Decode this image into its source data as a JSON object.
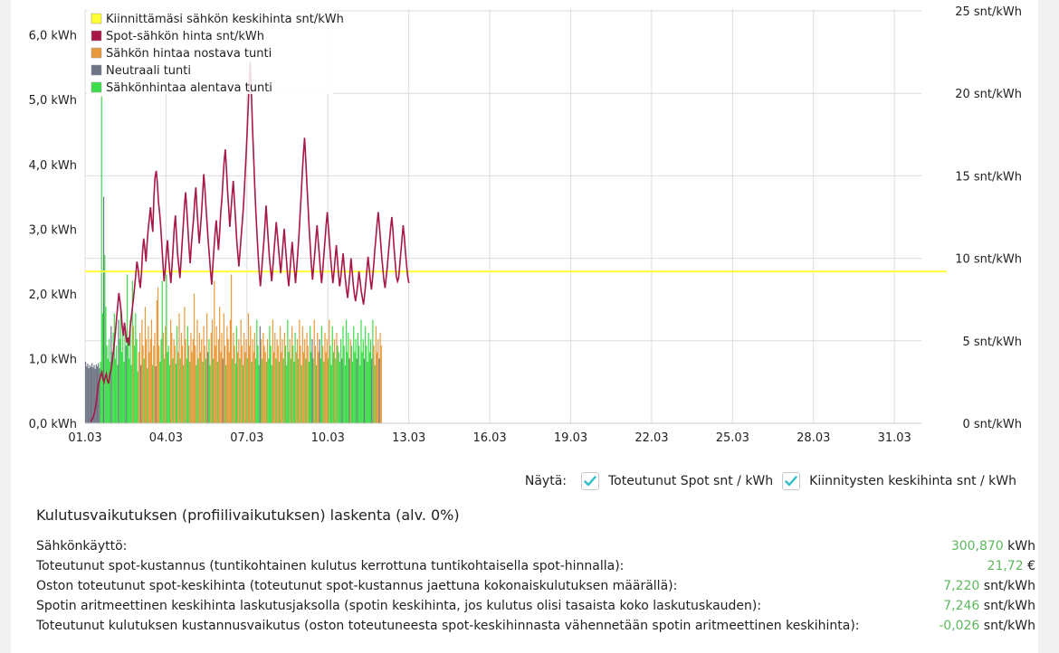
{
  "chart_data": {
    "type": "bar+line",
    "xlabel": "",
    "left_axis": {
      "label": "",
      "ticks": [
        "0,0 kWh",
        "1,0 kWh",
        "2,0 kWh",
        "3,0 kWh",
        "4,0 kWh",
        "5,0 kWh",
        "6,0 kWh"
      ],
      "range": [
        0,
        6.4
      ]
    },
    "right_axis": {
      "label": "",
      "ticks": [
        "0 snt/kWh",
        "5 snt/kWh",
        "10 snt/kWh",
        "15 snt/kWh",
        "20 snt/kWh",
        "25 snt/kWh"
      ],
      "range": [
        0,
        25
      ]
    },
    "x_ticks": [
      "01.03",
      "04.03",
      "07.03",
      "10.03",
      "13.03",
      "16.03",
      "19.03",
      "22.03",
      "25.03",
      "28.03",
      "31.03"
    ],
    "x_range_days": [
      0,
      31
    ],
    "legend": [
      {
        "label": "Kiinnittämäsi sähkön keskihinta snt/kWh",
        "color": "#ffff33"
      },
      {
        "label": "Spot-sähkön hinta snt/kWh",
        "color": "#a8174a"
      },
      {
        "label": "Sähkön hintaa nostava tunti",
        "color": "#e89a3c"
      },
      {
        "label": "Neutraali tunti",
        "color": "#6e7484"
      },
      {
        "label": "Sähkönhintaa alentava tunti",
        "color": "#3ddc4a"
      }
    ],
    "fixed_price_snt": 9.2,
    "consumption_hourly_kwh": [
      0.95,
      0.88,
      0.92,
      0.85,
      0.9,
      0.87,
      0.93,
      0.86,
      0.9,
      0.84,
      0.91,
      0.88,
      0.93,
      0.85,
      0.95,
      5.05,
      1.7,
      3.5,
      2.6,
      1.8,
      1.2,
      1.0,
      1.3,
      0.95,
      1.5,
      1.1,
      1.4,
      1.7,
      1.0,
      1.2,
      0.9,
      1.6,
      1.3,
      1.8,
      1.1,
      1.5,
      0.95,
      1.4,
      1.2,
      2.3,
      1.3,
      1.0,
      1.6,
      0.9,
      2.2,
      1.5,
      1.2,
      1.7,
      1.3,
      0.8,
      1.1,
      1.4,
      0.9,
      1.6,
      1.2,
      1.0,
      1.8,
      1.3,
      0.85,
      1.5,
      1.1,
      1.3,
      1.6,
      0.9,
      1.2,
      1.4,
      0.88,
      1.9,
      2.1,
      1.2,
      0.95,
      1.3,
      2.2,
      1.4,
      1.0,
      1.5,
      2.3,
      1.1,
      1.2,
      0.9,
      1.6,
      1.4,
      1.0,
      1.3,
      1.2,
      0.92,
      1.5,
      1.1,
      1.7,
      1.0,
      1.4,
      1.2,
      0.9,
      1.8,
      1.3,
      1.0,
      1.5,
      1.2,
      0.95,
      1.4,
      1.1,
      1.3,
      2.0,
      1.2,
      0.9,
      1.6,
      1.0,
      1.4,
      1.1,
      1.3,
      0.95,
      1.5,
      1.2,
      1.0,
      1.7,
      1.1,
      1.3,
      0.9,
      1.4,
      1.6,
      1.0,
      2.2,
      1.2,
      1.5,
      0.95,
      1.3,
      1.8,
      1.1,
      1.4,
      1.0,
      1.7,
      1.2,
      0.9,
      1.5,
      1.3,
      1.1,
      1.6,
      2.3,
      1.0,
      1.4,
      1.2,
      0.92,
      1.5,
      1.1,
      1.3,
      1.0,
      1.6,
      1.2,
      0.9,
      1.4,
      1.1,
      1.3,
      1.0,
      1.7,
      1.2,
      1.5,
      0.95,
      1.3,
      1.1,
      1.4,
      1.0,
      1.6,
      1.2,
      0.9,
      1.5,
      1.3,
      1.0,
      1.4,
      1.2,
      1.1,
      0.95,
      1.3,
      1.0,
      1.5,
      1.2,
      0.9,
      1.6,
      1.1,
      1.4,
      1.0,
      1.3,
      1.2,
      0.95,
      1.5,
      1.1,
      1.3,
      1.0,
      1.4,
      1.2,
      0.9,
      1.6,
      1.1,
      1.3,
      1.0,
      1.5,
      1.2,
      0.95,
      1.4,
      1.1,
      1.3,
      1.0,
      1.6,
      1.2,
      0.9,
      1.5,
      1.1,
      1.3,
      1.0,
      1.4,
      1.2,
      0.95,
      1.5,
      1.1,
      1.3,
      1.0,
      1.6,
      1.2,
      0.9,
      1.4,
      1.1,
      1.3,
      1.0,
      1.5,
      1.2,
      0.95,
      1.4,
      1.1,
      1.3,
      1.0,
      1.6,
      1.2,
      0.9,
      1.5,
      1.1,
      1.3,
      1.0,
      1.4,
      1.2,
      1.1,
      0.95,
      1.3,
      1.0,
      1.5,
      1.2,
      0.9,
      1.6,
      1.1,
      1.4,
      1.0,
      1.3,
      1.2,
      0.95,
      1.5,
      1.1,
      1.3,
      1.0,
      1.4,
      1.2,
      0.9,
      1.6,
      1.1,
      1.3,
      1.0,
      1.5,
      1.2,
      0.95,
      1.4,
      1.1,
      1.3,
      1.0,
      1.6,
      1.2,
      0.9,
      1.5,
      1.1,
      1.3,
      1.0,
      1.4,
      1.2
    ],
    "spot_price_hourly_snt": [
      0.1,
      0.2,
      0.3,
      0.5,
      0.8,
      1.2,
      1.8,
      2.4,
      2.6,
      2.9,
      3.1,
      2.7,
      2.5,
      2.8,
      3.0,
      2.6,
      2.4,
      2.9,
      3.2,
      3.6,
      4.2,
      4.8,
      5.5,
      6.3,
      7.1,
      7.9,
      7.4,
      6.8,
      5.9,
      5.3,
      6.1,
      5.5,
      4.9,
      5.2,
      4.7,
      5.8,
      6.4,
      7.0,
      7.6,
      8.3,
      9.0,
      9.8,
      9.4,
      8.7,
      8.2,
      9.1,
      10.4,
      11.2,
      10.6,
      9.8,
      10.9,
      11.8,
      12.4,
      13.1,
      12.2,
      11.6,
      13.8,
      14.9,
      15.3,
      14.6,
      13.4,
      12.8,
      11.9,
      10.8,
      9.6,
      8.6,
      9.4,
      10.3,
      11.1,
      10.0,
      9.2,
      8.5,
      9.6,
      10.7,
      11.9,
      12.6,
      11.3,
      10.2,
      9.5,
      8.8,
      9.9,
      11.0,
      12.1,
      13.2,
      14.0,
      12.9,
      11.8,
      10.6,
      9.7,
      10.8,
      11.6,
      12.4,
      13.5,
      14.3,
      13.0,
      11.9,
      10.9,
      11.8,
      12.7,
      13.9,
      15.1,
      14.2,
      13.1,
      12.0,
      11.0,
      10.1,
      9.2,
      8.4,
      9.5,
      10.6,
      11.5,
      12.3,
      11.4,
      10.5,
      11.6,
      12.8,
      13.6,
      14.8,
      15.9,
      16.6,
      15.4,
      14.1,
      13.0,
      11.9,
      12.9,
      13.8,
      14.7,
      13.6,
      12.4,
      11.2,
      10.3,
      9.5,
      10.4,
      11.3,
      12.2,
      13.1,
      14.4,
      15.7,
      17.2,
      18.8,
      20.5,
      21.9,
      20.1,
      18.0,
      16.2,
      14.3,
      12.8,
      11.4,
      10.2,
      9.1,
      8.3,
      9.2,
      10.1,
      11.0,
      12.0,
      13.2,
      12.1,
      11.0,
      10.0,
      9.3,
      8.6,
      9.5,
      10.4,
      11.3,
      12.2,
      11.4,
      10.6,
      9.8,
      9.1,
      10.0,
      10.9,
      11.8,
      10.8,
      9.9,
      9.0,
      8.3,
      9.2,
      10.1,
      11.0,
      10.1,
      9.3,
      8.5,
      9.4,
      10.3,
      11.4,
      12.6,
      13.9,
      15.2,
      16.4,
      17.3,
      16.0,
      14.6,
      13.2,
      11.9,
      10.7,
      9.6,
      8.7,
      9.5,
      10.3,
      11.2,
      12.0,
      11.1,
      10.2,
      9.3,
      8.5,
      9.3,
      10.2,
      11.1,
      12.0,
      12.8,
      11.9,
      10.9,
      10.0,
      9.2,
      8.5,
      9.2,
      10.0,
      10.8,
      9.9,
      9.0,
      8.3,
      8.9,
      9.6,
      10.3,
      9.5,
      8.7,
      8.1,
      7.6,
      8.3,
      9.1,
      10.0,
      9.2,
      8.4,
      7.8,
      7.4,
      7.9,
      8.5,
      9.2,
      8.6,
      8.0,
      7.6,
      7.2,
      7.8,
      8.5,
      9.3,
      10.1,
      9.4,
      8.7,
      8.1,
      8.8,
      9.6,
      10.5,
      11.3,
      12.1,
      12.8,
      12.0,
      11.1,
      10.2,
      9.4,
      8.7,
      8.2,
      8.8,
      9.5,
      10.3,
      11.1,
      11.9,
      12.5,
      11.6,
      10.6,
      9.7,
      8.9,
      8.6,
      8.8,
      9.6,
      10.4,
      11.2,
      12.0,
      11.3,
      10.4,
      9.6,
      8.9,
      8.5
    ],
    "data_end_day": 11.0,
    "spot_end_day": 12.0
  },
  "toggles": {
    "label": "Näytä:",
    "items": [
      {
        "label": "Toteutunut Spot snt / kWh",
        "checked": true
      },
      {
        "label": "Kiinnitysten keskihinta snt / kWh",
        "checked": true
      }
    ],
    "check_color": "#2cbfc9"
  },
  "calc": {
    "title": "Kulutusvaikutuksen (profiilivaikutuksen) laskenta (alv. 0%)",
    "rows": [
      {
        "label": "Sähkönkäyttö:",
        "value": "300,870",
        "unit": "kWh"
      },
      {
        "label": "Toteutunut spot-kustannus (tuntikohtainen kulutus kerrottuna tuntikohtaisella spot-hinnalla):",
        "value": "21,72",
        "unit": "€"
      },
      {
        "label": "Oston toteutunut spot-keskihinta (toteutunut spot-kustannus jaettuna kokonaiskulutuksen määrällä):",
        "value": "7,220",
        "unit": "snt/kWh"
      },
      {
        "label": "Spotin aritmeettinen keskihinta laskutusjaksolla (spotin keskihinta, jos kulutus olisi tasaista koko laskutuskauden):",
        "value": "7,246",
        "unit": "snt/kWh"
      },
      {
        "label": "Toteutunut kulutuksen kustannusvaikutus (oston toteutuneesta spot-keskihinnasta vähennetään spotin aritmeettinen keskihinta):",
        "value": "-0,026",
        "unit": "snt/kWh"
      }
    ]
  }
}
